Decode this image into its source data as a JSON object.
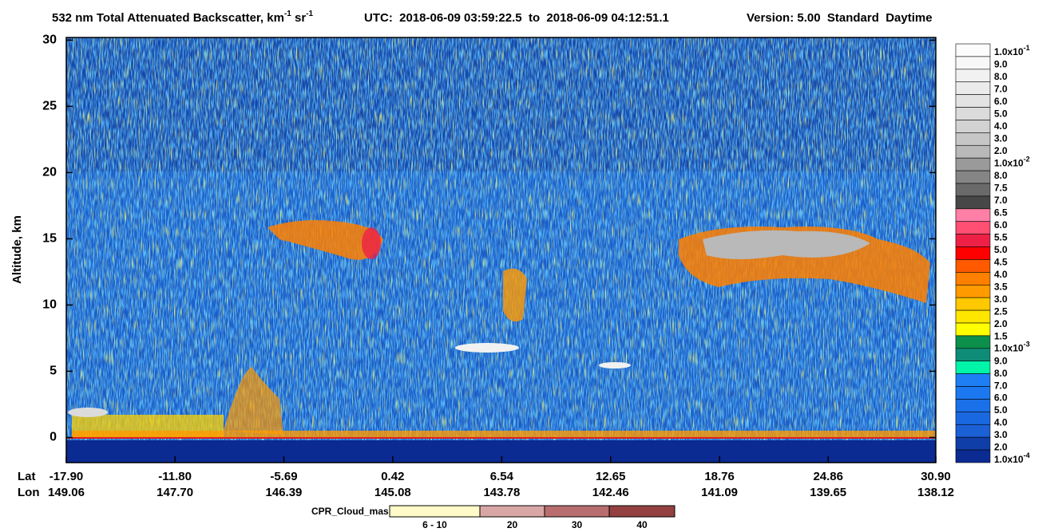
{
  "chart_data": {
    "type": "curtain",
    "title": {
      "text": "532 nm Total Attenuated Backscatter, km",
      "unit_exp": "-1",
      "unit2": " sr",
      "unit2_exp": "-1"
    },
    "utc": "UTC:  2018-06-09 03:59:22.5  to  2018-06-09 04:12:51.1",
    "version": "Version: 5.00  Standard  Daytime",
    "ylabel": "Altitude, km",
    "ylim": [
      -1.9,
      30.2
    ],
    "yticks": [
      0,
      5,
      10,
      15,
      20,
      25,
      30
    ],
    "x_row_labels": [
      "Lat",
      "Lon"
    ],
    "xlim": [
      -17.9,
      30.9
    ],
    "xticks": [
      {
        "value": -17.9,
        "label": "-17.90"
      },
      {
        "value": -11.8,
        "label": "-11.80"
      },
      -5.69,
      0.42,
      6.54,
      12.65,
      18.76,
      24.86,
      {
        "value": 30.9,
        "label": "30.90"
      }
    ],
    "lon_labels": [
      "149.06",
      "147.70",
      "146.39",
      "145.08",
      "143.78",
      "142.46",
      "141.09",
      "139.65",
      "138.12"
    ],
    "colorbar": {
      "levels": [
        {
          "text": "1.0x10",
          "sup": "-1"
        },
        "9.0",
        "8.0",
        "7.0",
        "6.0",
        "5.0",
        "4.0",
        "3.0",
        "2.0",
        {
          "text": "1.0x10",
          "sup": "-2"
        },
        "8.0",
        "7.5",
        "7.0",
        "6.5",
        "6.0",
        "5.5",
        "5.0",
        "4.5",
        "4.0",
        "3.5",
        "3.0",
        "2.5",
        "2.0",
        "1.5",
        {
          "text": "1.0x10",
          "sup": "-3"
        },
        "9.0",
        "8.0",
        "7.0",
        "6.0",
        "5.0",
        "4.0",
        "3.0",
        "2.0",
        {
          "text": "1.0x10",
          "sup": "-4"
        }
      ],
      "colors": [
        "#fcfcfc",
        "#f7f7f7",
        "#f1f1f1",
        "#ebebeb",
        "#e3e3e3",
        "#dbdbdb",
        "#d2d2d2",
        "#c6c6c6",
        "#b9b9b9",
        "#9a9a9a",
        "#858585",
        "#6a6a6a",
        "#474747",
        "#ff7fa6",
        "#ff4f72",
        "#ee2046",
        "#ff0000",
        "#ff5a00",
        "#ff7f00",
        "#ff9a00",
        "#ffc800",
        "#ffe600",
        "#ffff00",
        "#0c8f4a",
        "#0e8c78",
        "#00f5a8",
        "#1e7ff5",
        "#1b78f0",
        "#1a70e8",
        "#1a68e0",
        "#1c60d6",
        "#0f3ea8",
        "#0b2a92"
      ]
    },
    "cpr": {
      "title": "CPR_Cloud_mask",
      "labels": [
        "6 - 10",
        "20",
        "30",
        "40"
      ],
      "colors": [
        "#fffbc8",
        "#d9a6a6",
        "#b86e6e",
        "#944040"
      ]
    }
  }
}
